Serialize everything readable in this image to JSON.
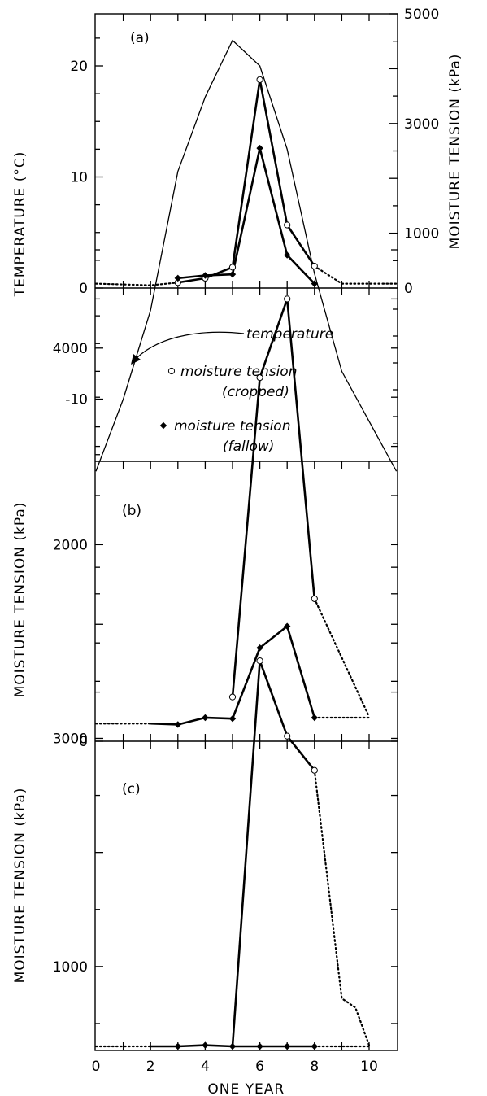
{
  "chart_data": [
    {
      "panel": "(a)",
      "type": "line",
      "xlim": [
        0,
        11
      ],
      "left_axis": {
        "label": "TEMPERATURE (°C)",
        "ticks": [
          -10,
          0,
          10,
          20
        ],
        "ylim": [
          -16.5,
          24.5
        ]
      },
      "right_axis": {
        "label": "MOISTURE TENSION (kPa)",
        "ticks": [
          0,
          1000,
          3000,
          5000
        ],
        "ylim": [
          0,
          5000
        ]
      },
      "temperature": {
        "x": [
          0,
          1,
          2,
          3,
          4,
          5,
          6,
          7,
          8,
          9,
          10,
          11
        ],
        "y": [
          -16.5,
          -10,
          -2,
          10.5,
          17.2,
          22.3,
          20,
          12.5,
          1.3,
          -7.5,
          -12,
          -16.5
        ]
      },
      "cropped": {
        "x": [
          3,
          4,
          5,
          6,
          7,
          8
        ],
        "y": [
          100,
          180,
          380,
          3800,
          1150,
          400
        ],
        "leading_dotted": [
          [
            0,
            80
          ],
          [
            2,
            50
          ],
          [
            3,
            100
          ]
        ],
        "trailing_dotted": [
          [
            8,
            400
          ],
          [
            9,
            80
          ],
          [
            11,
            80
          ]
        ]
      },
      "fallow": {
        "x": [
          3,
          4,
          5,
          6,
          7,
          8
        ],
        "y": [
          180,
          230,
          250,
          2550,
          600,
          80
        ]
      },
      "annotation": "temperature",
      "legend": [
        {
          "marker": "open-circle",
          "line1": "moisture tension",
          "line2": "(cropped)"
        },
        {
          "marker": "filled-diamond",
          "line1": "moisture tension",
          "line2": "(fallow)"
        }
      ]
    },
    {
      "panel": "(b)",
      "type": "line",
      "xlim": [
        0,
        11
      ],
      "ylabel": "MOISTURE TENSION (kPa)",
      "yticks": [
        0,
        2000,
        4000
      ],
      "ylim": [
        0,
        5500
      ],
      "cropped": {
        "x": [
          5,
          6,
          7,
          8
        ],
        "y": [
          450,
          3700,
          4500,
          1450
        ],
        "trailing_dotted": [
          [
            8,
            1450
          ],
          [
            10,
            250
          ]
        ]
      },
      "fallow": {
        "x": [
          3,
          4,
          5,
          6,
          7,
          8
        ],
        "y": [
          170,
          240,
          230,
          950,
          1170,
          240
        ],
        "leading_dotted": [
          [
            0,
            180
          ],
          [
            2,
            180
          ]
        ],
        "leading_solid": [
          [
            2,
            180
          ],
          [
            3,
            170
          ]
        ],
        "trailing_dotted": [
          [
            8,
            240
          ],
          [
            10,
            240
          ]
        ]
      }
    },
    {
      "panel": "(c)",
      "type": "line",
      "xlim": [
        0,
        11
      ],
      "xlabel": "ONE YEAR",
      "xticks": [
        0,
        2,
        4,
        6,
        8,
        10
      ],
      "ylabel": "MOISTURE TENSION (kPa)",
      "yticks": [
        1000,
        3000
      ],
      "ylim": [
        0,
        4700
      ],
      "cropped": {
        "x": [
          6,
          7,
          8
        ],
        "y": [
          3680,
          3020,
          2720
        ],
        "leading_solid": [
          [
            5,
            300
          ],
          [
            6,
            3680
          ]
        ],
        "trailing_dotted": [
          [
            8,
            2720
          ],
          [
            9,
            720
          ],
          [
            9.5,
            640
          ],
          [
            10,
            310
          ]
        ]
      },
      "fallow": {
        "x": [
          3,
          4,
          5,
          6,
          7,
          8
        ],
        "y": [
          300,
          310,
          300,
          300,
          300,
          300
        ],
        "leading_dotted": [
          [
            0,
            300
          ],
          [
            2,
            300
          ]
        ],
        "leading_solid": [
          [
            2,
            300
          ],
          [
            3,
            300
          ]
        ],
        "trailing_dotted": [
          [
            8,
            300
          ],
          [
            10,
            300
          ]
        ]
      }
    }
  ]
}
